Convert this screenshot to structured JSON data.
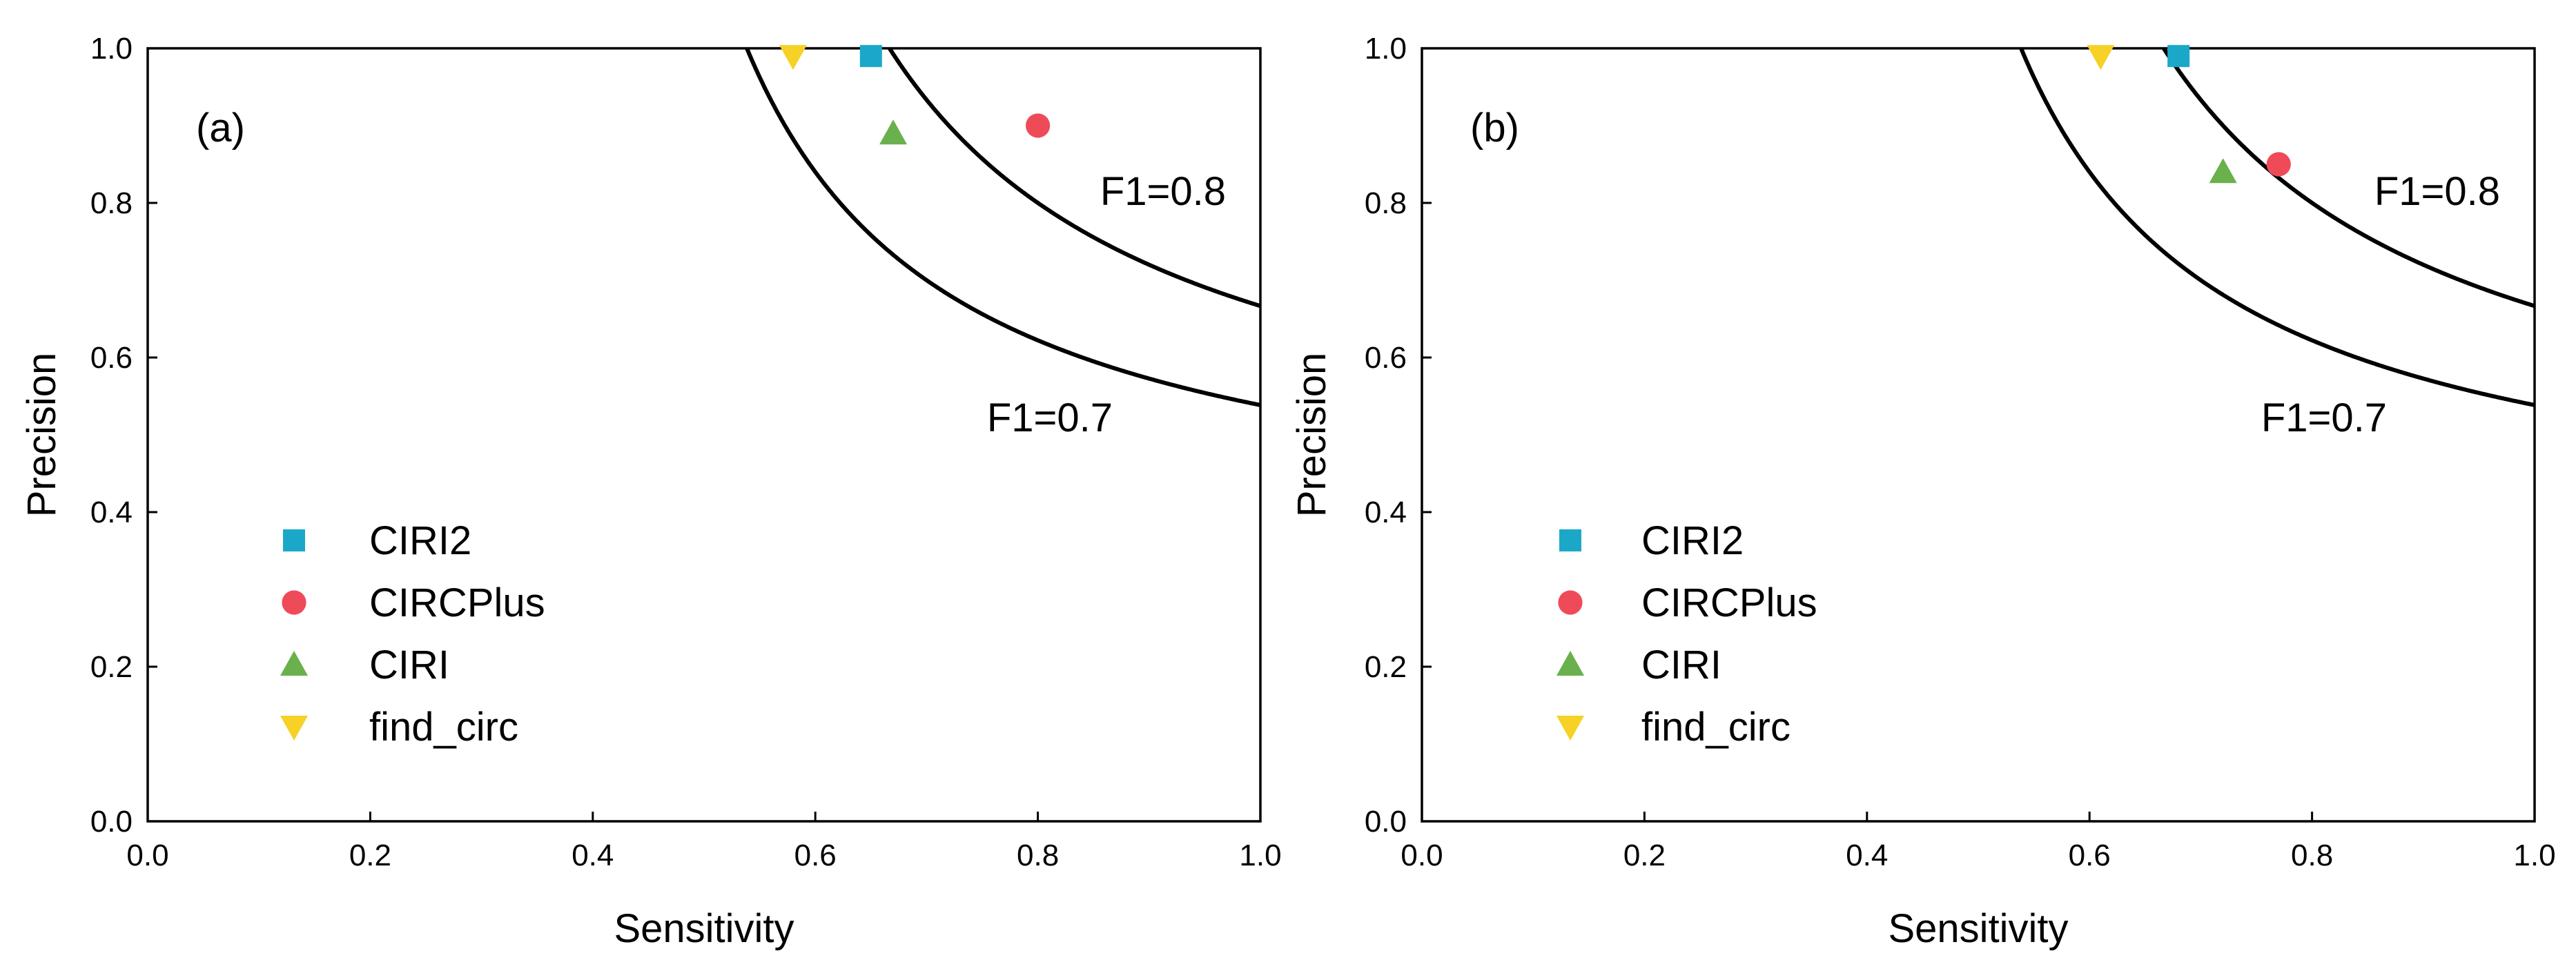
{
  "chart_data": [
    {
      "type": "scatter",
      "panel_label": "(a)",
      "xlabel": "Sensitivity",
      "ylabel": "Precision",
      "xlim": [
        0.0,
        1.0
      ],
      "ylim": [
        0.0,
        1.0
      ],
      "xticks": [
        "0.0",
        "0.2",
        "0.4",
        "0.6",
        "0.8",
        "1.0"
      ],
      "yticks": [
        "0.0",
        "0.2",
        "0.4",
        "0.6",
        "0.8",
        "1.0"
      ],
      "grid": false,
      "legend_position": "lower-left",
      "series": [
        {
          "name": "CIRI2",
          "marker": "square",
          "color": "#1BA8C8",
          "x": 0.65,
          "y": 0.99
        },
        {
          "name": "CIRCPlus",
          "marker": "circle",
          "color": "#EF4A58",
          "x": 0.8,
          "y": 0.9
        },
        {
          "name": "CIRI",
          "marker": "triangle-up",
          "color": "#6AB04C",
          "x": 0.67,
          "y": 0.89
        },
        {
          "name": "find_circ",
          "marker": "triangle-down",
          "color": "#F6D126",
          "x": 0.58,
          "y": 0.99
        }
      ],
      "f1_curves": [
        {
          "f1": 0.8,
          "label": "F1=0.8"
        },
        {
          "f1": 0.7,
          "label": "F1=0.7"
        }
      ]
    },
    {
      "type": "scatter",
      "panel_label": "(b)",
      "xlabel": "Sensitivity",
      "ylabel": "Precision",
      "xlim": [
        0.0,
        1.0
      ],
      "ylim": [
        0.0,
        1.0
      ],
      "xticks": [
        "0.0",
        "0.2",
        "0.4",
        "0.6",
        "0.8",
        "1.0"
      ],
      "yticks": [
        "0.0",
        "0.2",
        "0.4",
        "0.6",
        "0.8",
        "1.0"
      ],
      "grid": false,
      "legend_position": "lower-left",
      "series": [
        {
          "name": "CIRI2",
          "marker": "square",
          "color": "#1BA8C8",
          "x": 0.68,
          "y": 0.99
        },
        {
          "name": "CIRCPlus",
          "marker": "circle",
          "color": "#EF4A58",
          "x": 0.77,
          "y": 0.85
        },
        {
          "name": "CIRI",
          "marker": "triangle-up",
          "color": "#6AB04C",
          "x": 0.72,
          "y": 0.84
        },
        {
          "name": "find_circ",
          "marker": "triangle-down",
          "color": "#F6D126",
          "x": 0.61,
          "y": 0.99
        }
      ],
      "f1_curves": [
        {
          "f1": 0.8,
          "label": "F1=0.8"
        },
        {
          "f1": 0.7,
          "label": "F1=0.7"
        }
      ]
    }
  ]
}
